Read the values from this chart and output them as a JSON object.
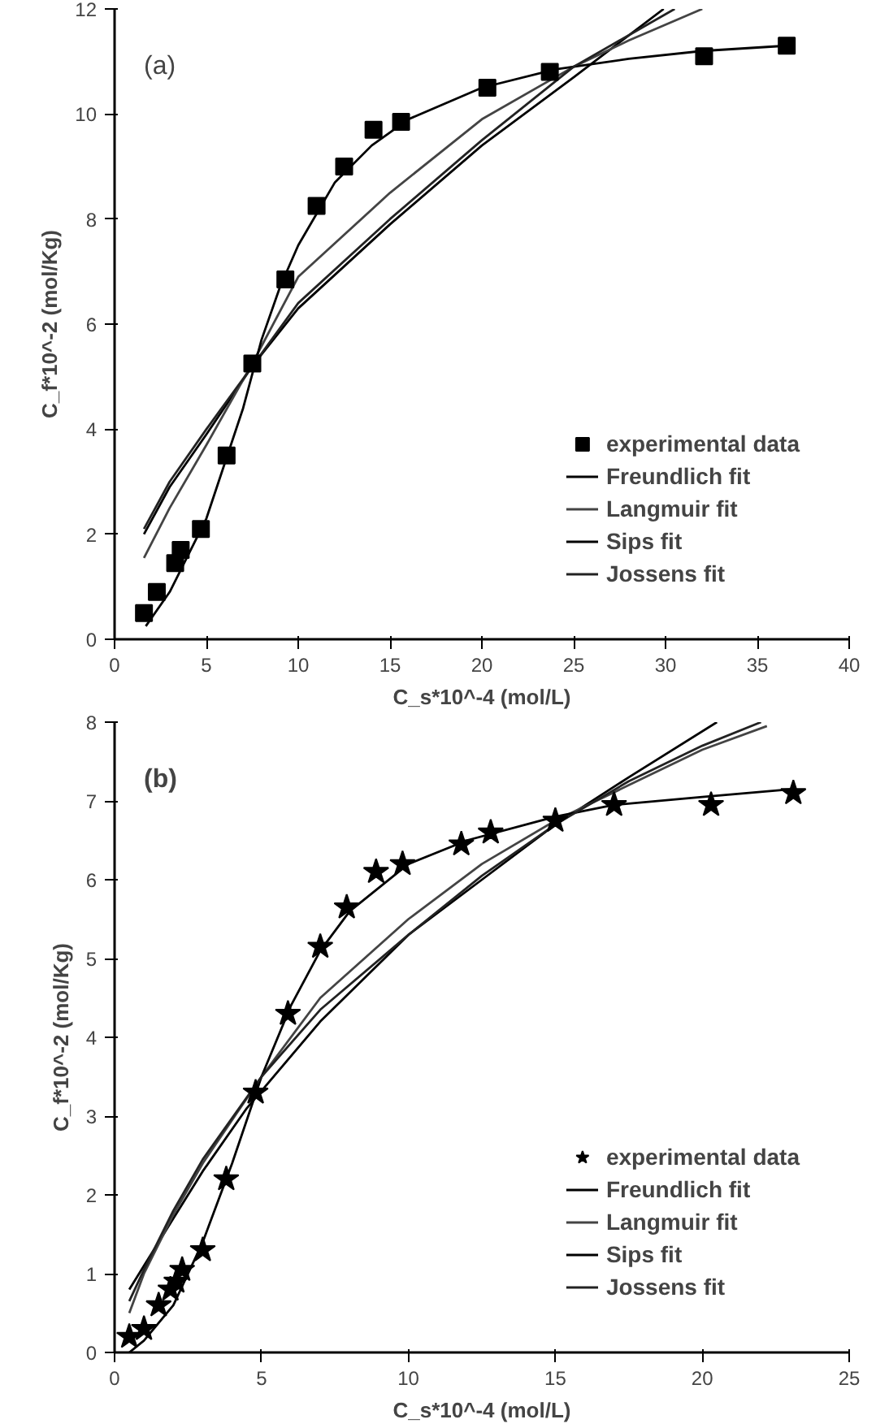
{
  "chart_data": [
    {
      "type": "line",
      "xlabel": "C_s*10^-4 (mol/L)",
      "ylabel": "C_f*10^-2 (mol/Kg)",
      "annotations": [
        "(a)"
      ],
      "xlim": [
        0,
        40
      ],
      "ylim": [
        0,
        12
      ],
      "xticks": [
        0,
        5,
        10,
        15,
        20,
        25,
        30,
        35,
        40
      ],
      "yticks": [
        0,
        2,
        4,
        6,
        8,
        10,
        12
      ],
      "grid": false,
      "legend": "bottom right",
      "series": [
        {
          "name": "experimental data",
          "type": "scatter",
          "marker": "square",
          "color": "#000000",
          "x": [
            1.6,
            2.3,
            3.3,
            3.6,
            4.7,
            6.1,
            7.5,
            9.3,
            11.0,
            12.5,
            14.1,
            15.6,
            20.3,
            23.7,
            32.1,
            36.6
          ],
          "values": [
            0.5,
            0.9,
            1.45,
            1.7,
            2.1,
            3.5,
            5.25,
            6.85,
            8.25,
            9.0,
            9.7,
            9.85,
            10.5,
            10.8,
            11.1,
            11.3
          ]
        },
        {
          "name": "Freundlich fit",
          "color": "#000000",
          "x": [
            1.6,
            3,
            5,
            7.5,
            10,
            15,
            20,
            25,
            29.9
          ],
          "values": [
            2.0,
            2.9,
            3.9,
            5.2,
            6.3,
            7.9,
            9.4,
            10.7,
            12.0
          ]
        },
        {
          "name": "Langmuir fit",
          "color": "#444444",
          "x": [
            1.6,
            3,
            5,
            7.5,
            10,
            15,
            20,
            25,
            28,
            32
          ],
          "values": [
            1.55,
            2.5,
            3.7,
            5.25,
            6.9,
            8.5,
            9.9,
            10.9,
            11.4,
            12.0
          ]
        },
        {
          "name": "Sips fit",
          "color": "#000000",
          "x": [
            1.7,
            3,
            5,
            7,
            8,
            9,
            10,
            12,
            14,
            16,
            20,
            24,
            28,
            32,
            36.6
          ],
          "values": [
            0.25,
            0.9,
            2.3,
            4.4,
            5.7,
            6.7,
            7.5,
            8.7,
            9.4,
            9.9,
            10.5,
            10.85,
            11.05,
            11.2,
            11.3
          ]
        },
        {
          "name": "Jossens fit",
          "color": "#222222",
          "x": [
            1.6,
            3,
            5,
            7.5,
            10,
            15,
            20,
            25,
            30.5
          ],
          "values": [
            2.1,
            3.0,
            4.0,
            5.2,
            6.4,
            8.0,
            9.5,
            10.9,
            12.0
          ]
        }
      ]
    },
    {
      "type": "line",
      "xlabel": "C_s*10^-4 (mol/L)",
      "ylabel": "C_f*10^-2 (mol/Kg)",
      "annotations": [
        "(b)"
      ],
      "xlim": [
        0,
        25
      ],
      "ylim": [
        0,
        8
      ],
      "xticks": [
        0,
        5,
        10,
        15,
        20,
        25
      ],
      "yticks": [
        0,
        1,
        2,
        3,
        4,
        5,
        6,
        7,
        8
      ],
      "grid": false,
      "legend": "bottom right",
      "series": [
        {
          "name": "experimental data",
          "type": "scatter",
          "marker": "star",
          "color": "#000000",
          "x": [
            0.5,
            1.0,
            1.5,
            1.9,
            2.1,
            2.3,
            3.0,
            3.8,
            4.8,
            5.9,
            7.0,
            7.9,
            8.9,
            9.8,
            11.8,
            12.8,
            15.0,
            17.0,
            20.3,
            23.1
          ],
          "values": [
            0.2,
            0.3,
            0.6,
            0.8,
            0.9,
            1.05,
            1.3,
            2.2,
            3.3,
            4.3,
            5.15,
            5.65,
            6.1,
            6.2,
            6.45,
            6.6,
            6.75,
            6.95,
            6.95,
            7.1
          ]
        },
        {
          "name": "Freundlich fit",
          "color": "#000000",
          "x": [
            0.5,
            1,
            2,
            3,
            4.5,
            7,
            10,
            12.5,
            15,
            17.5,
            20.5
          ],
          "values": [
            0.8,
            1.1,
            1.7,
            2.3,
            3.1,
            4.2,
            5.3,
            6.0,
            6.7,
            7.3,
            8.0
          ]
        },
        {
          "name": "Langmuir fit",
          "color": "#444444",
          "x": [
            0.5,
            1,
            2,
            3,
            5,
            7,
            10,
            12.5,
            15,
            17.5,
            20,
            22.2
          ],
          "values": [
            0.5,
            1.0,
            1.75,
            2.4,
            3.5,
            4.5,
            5.5,
            6.2,
            6.75,
            7.2,
            7.65,
            7.95
          ]
        },
        {
          "name": "Sips fit",
          "color": "#000000",
          "x": [
            0.5,
            1,
            2,
            3,
            4,
            5,
            6,
            7,
            8,
            10,
            12,
            15,
            17,
            20,
            23.1
          ],
          "values": [
            0.0,
            0.15,
            0.6,
            1.4,
            2.4,
            3.5,
            4.4,
            5.1,
            5.6,
            6.2,
            6.5,
            6.8,
            6.95,
            7.05,
            7.15
          ]
        },
        {
          "name": "Jossens fit",
          "color": "#222222",
          "x": [
            0.5,
            1,
            2,
            3,
            5,
            7,
            10,
            12.5,
            15,
            17.5,
            20,
            22.0
          ],
          "values": [
            0.65,
            1.05,
            1.8,
            2.45,
            3.5,
            4.35,
            5.3,
            6.05,
            6.7,
            7.25,
            7.7,
            8.0
          ]
        }
      ]
    }
  ]
}
